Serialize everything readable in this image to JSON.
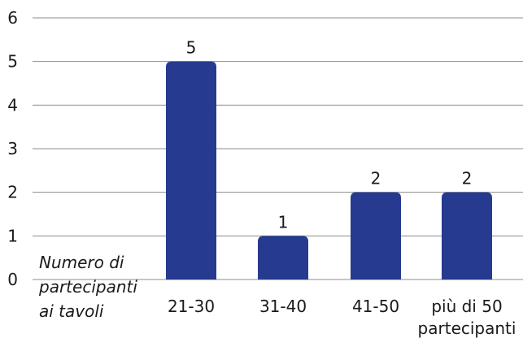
{
  "chart_data": {
    "type": "bar",
    "categories": [
      [
        "21-30"
      ],
      [
        "31-40"
      ],
      [
        "41-50"
      ],
      [
        "più di 50",
        "partecipanti"
      ]
    ],
    "values": [
      5,
      1,
      2,
      2
    ],
    "data_labels": [
      "5",
      "1",
      "2",
      "2"
    ],
    "y_ticks": [
      "0",
      "1",
      "2",
      "3",
      "4",
      "5",
      "6"
    ],
    "ylim": [
      0,
      6
    ],
    "xlabel": [
      "Numero di",
      "partecipanti",
      "ai tavoli"
    ],
    "ylabel": "",
    "title": "",
    "grid": true,
    "bar_color": "#263a8f"
  }
}
